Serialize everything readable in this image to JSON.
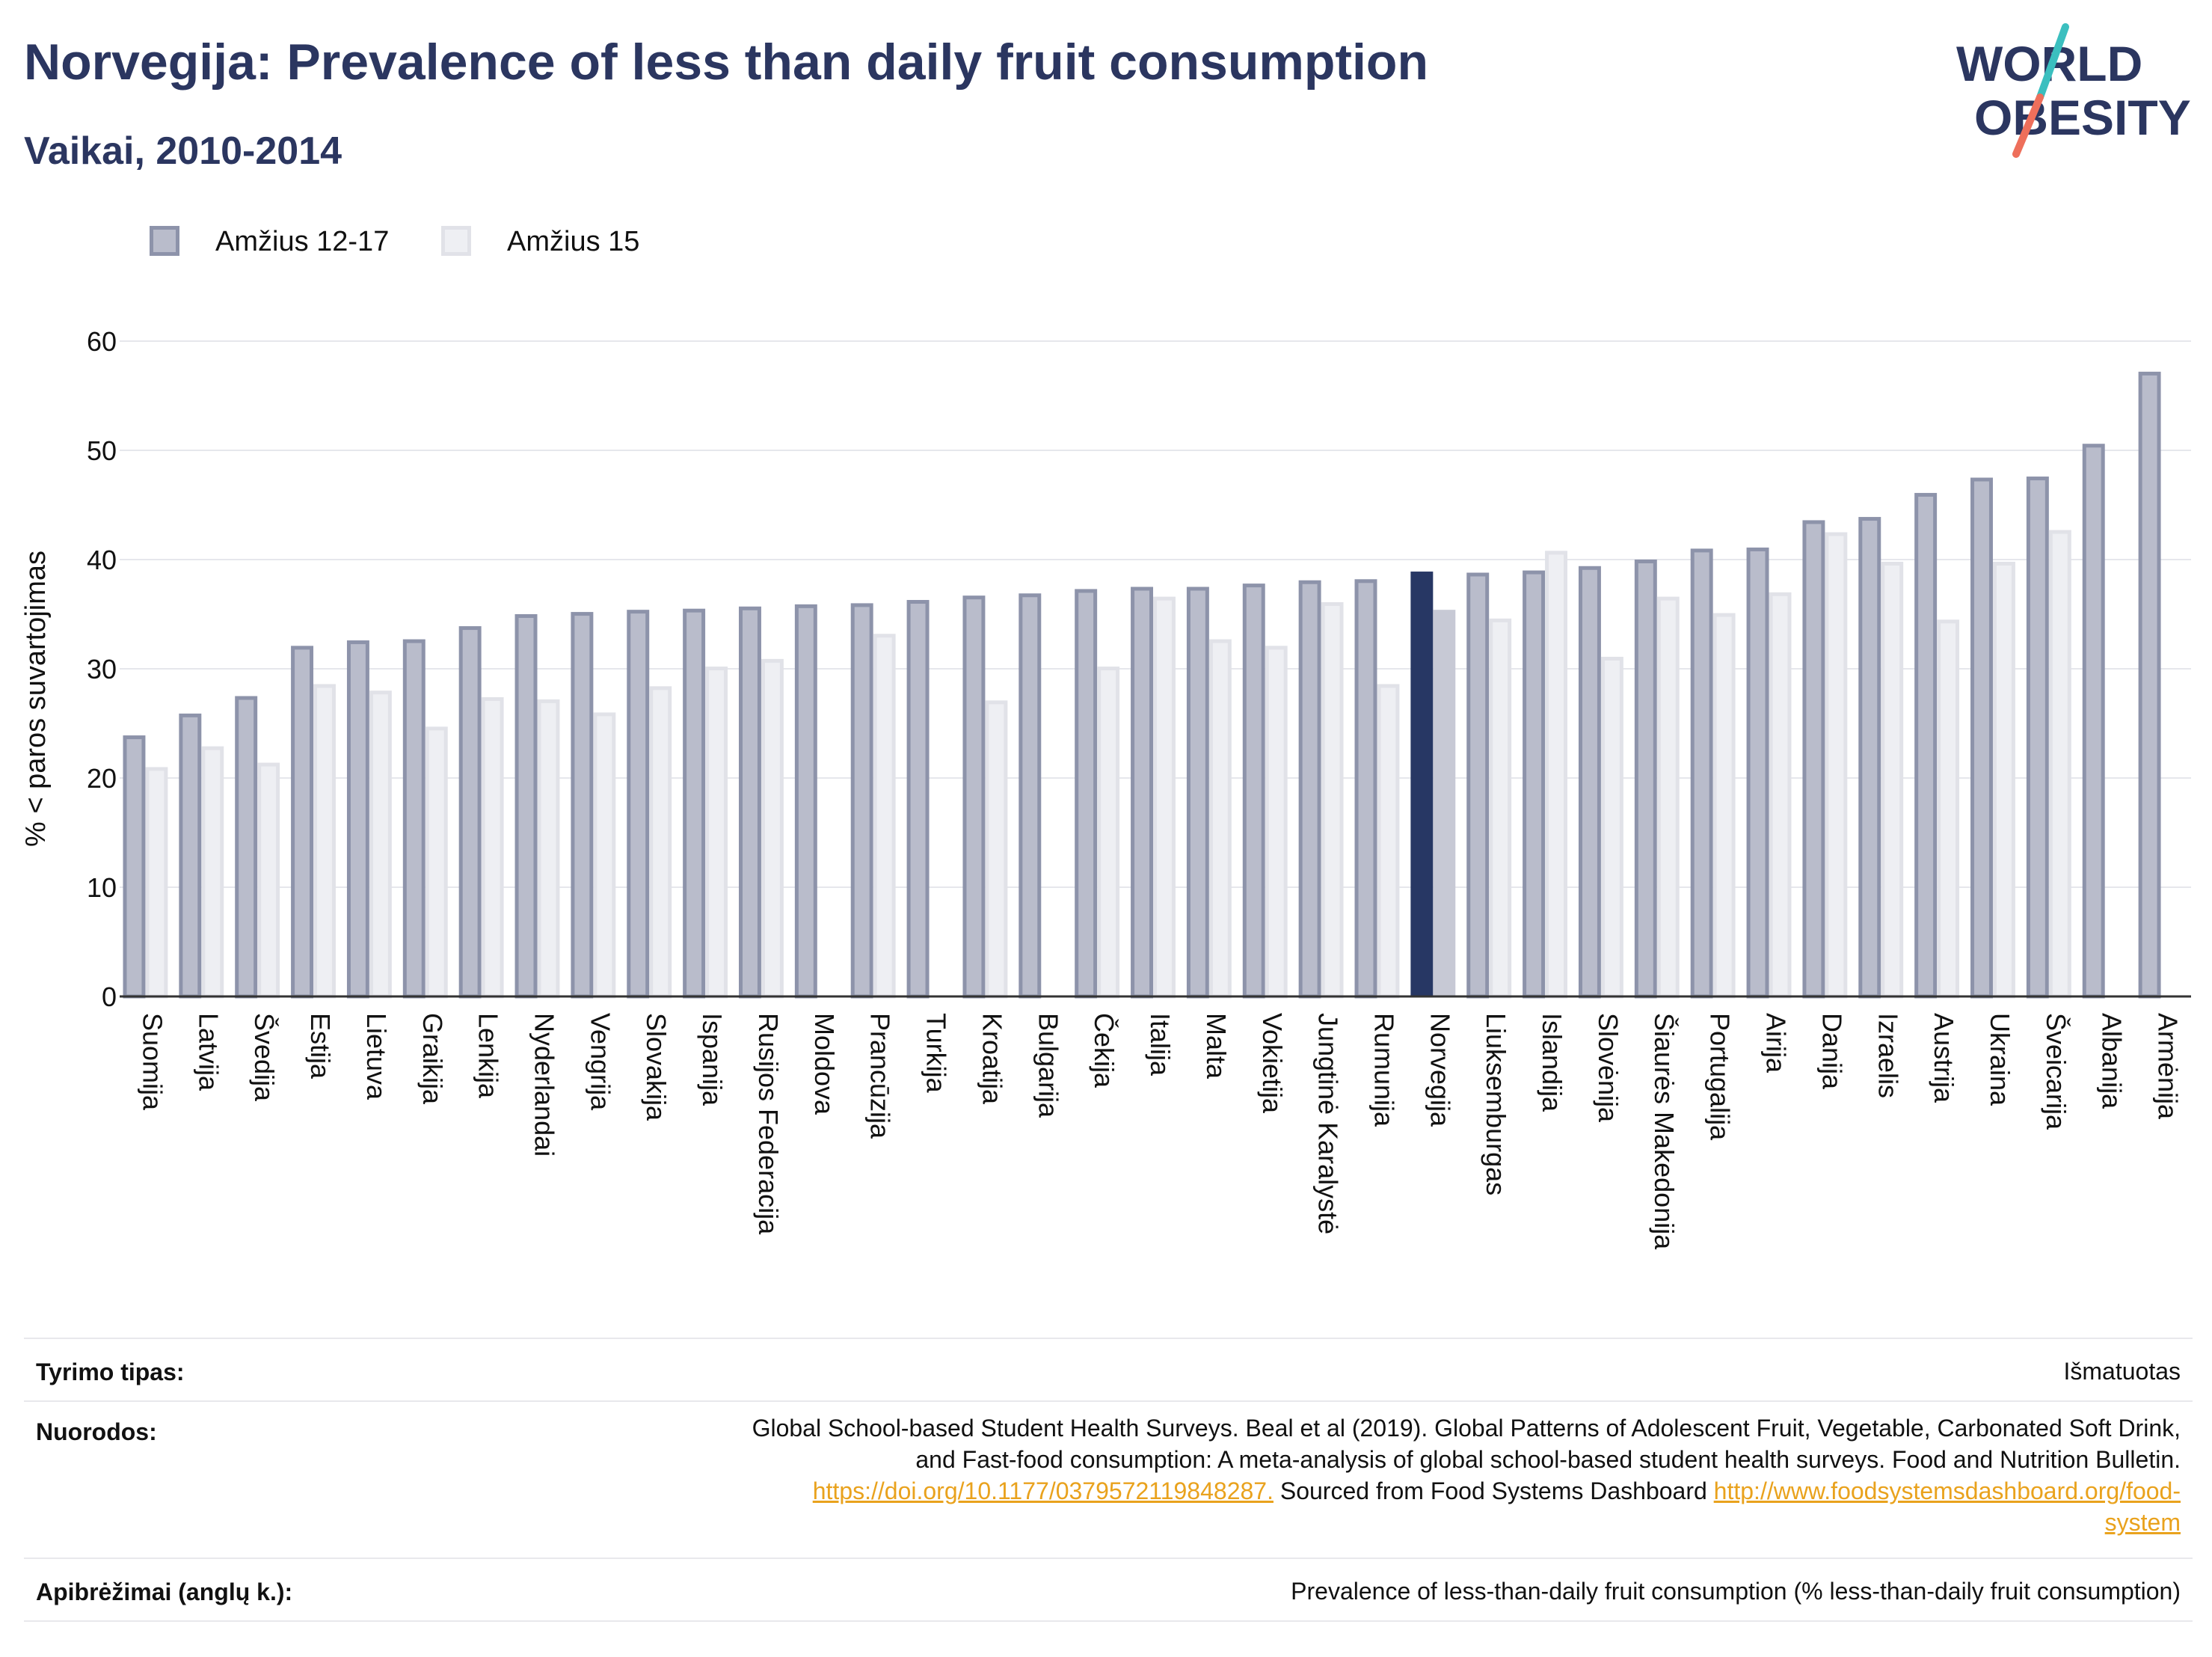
{
  "header": {
    "title": "Norvegija: Prevalence of less than daily fruit consumption",
    "subtitle": "Vaikai, 2010-2014"
  },
  "logo": {
    "line1": "WORLD",
    "line2": "OBESITY"
  },
  "colors": {
    "series1_fill": "#b9bccb",
    "series1_stroke": "#8d93aa",
    "series2_fill": "#eeeff3",
    "series2_stroke": "#e1e2e8",
    "highlight1": "#273764",
    "highlight2": "#c7c9d5",
    "title": "#2b3660",
    "link": "#e9a21d",
    "logo_teal": "#3bbfbf",
    "logo_coral": "#ee6f5b"
  },
  "chart_data": {
    "type": "bar",
    "ylabel": "% < paros suvartojimas",
    "ylim": [
      0,
      60
    ],
    "yticks": [
      0,
      10,
      20,
      30,
      40,
      50,
      60
    ],
    "grid": true,
    "legend_position": "top-left",
    "highlight_category": "Norvegija",
    "categories": [
      "Suomija",
      "Latvija",
      "Švedija",
      "Estija",
      "Lietuva",
      "Graikija",
      "Lenkija",
      "Nyderlandai",
      "Vengrija",
      "Slovakija",
      "Ispanija",
      "Rusijos Federacija",
      "Moldova",
      "Prancūzija",
      "Turkija",
      "Kroatija",
      "Bulgarija",
      "Čekija",
      "Italija",
      "Malta",
      "Vokietija",
      "Jungtinė Karalystė",
      "Rumunija",
      "Norvegija",
      "Liuksemburgas",
      "Islandija",
      "Slovėnija",
      "Šiaurės Makedonija",
      "Portugalija",
      "Airija",
      "Danija",
      "Izraelis",
      "Austrija",
      "Ukraina",
      "Šveicarija",
      "Albanija",
      "Armėnija"
    ],
    "series": [
      {
        "name": "Amžius 12-17",
        "values": [
          23.9,
          25.9,
          27.5,
          32.1,
          32.6,
          32.7,
          33.9,
          35.0,
          35.2,
          35.4,
          35.5,
          35.7,
          35.9,
          36.0,
          36.3,
          36.7,
          36.9,
          37.3,
          37.5,
          37.5,
          37.8,
          38.1,
          38.2,
          38.9,
          38.8,
          39.0,
          39.4,
          40.0,
          41.0,
          41.1,
          43.6,
          43.9,
          46.1,
          47.5,
          47.6,
          50.6,
          57.2
        ]
      },
      {
        "name": "Amžius 15",
        "values": [
          21.0,
          22.9,
          21.4,
          28.6,
          28.0,
          24.7,
          27.4,
          27.2,
          26.0,
          28.4,
          30.2,
          30.9,
          null,
          33.2,
          null,
          27.1,
          null,
          30.2,
          36.6,
          32.7,
          32.1,
          36.1,
          28.6,
          35.4,
          34.6,
          40.8,
          31.1,
          36.6,
          35.1,
          37.0,
          42.5,
          39.8,
          34.5,
          39.8,
          42.7,
          null,
          null
        ]
      }
    ]
  },
  "meta": {
    "survey_type_label": "Tyrimo tipas:",
    "survey_type_value": "Išmatuotas",
    "references_label": "Nuorodos:",
    "references_line1": "Global School-based Student Health Surveys. Beal et al (2019). Global Patterns of Adolescent Fruit, Vegetable, Carbonated Soft Drink,",
    "references_line2": "and Fast-food consumption: A meta-analysis of global school-based student health surveys. Food and Nutrition Bulletin.",
    "references_link1": "https://doi.org/10.1177/0379572119848287.",
    "references_mid": " Sourced from Food Systems Dashboard ",
    "references_link2a": "http://www.foodsystemsdashboard.org/food-",
    "references_link2b": "system",
    "definitions_label": "Apibrėžimai (anglų k.):",
    "definitions_value": "Prevalence of less-than-daily fruit consumption (% less-than-daily fruit consumption)"
  }
}
